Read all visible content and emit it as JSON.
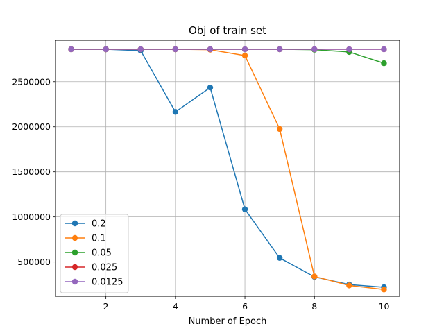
{
  "chart_data": {
    "type": "line",
    "title": "Obj of train set",
    "xlabel": "Number of Epoch",
    "ylabel": "",
    "x": [
      1,
      2,
      3,
      4,
      5,
      6,
      7,
      8,
      9,
      10
    ],
    "xticks": [
      2,
      4,
      6,
      8,
      10
    ],
    "yticks": [
      500000,
      1000000,
      1500000,
      2000000,
      2500000
    ],
    "xlim": [
      0.55,
      10.45
    ],
    "ylim": [
      120000,
      2960000
    ],
    "grid": true,
    "legend_position": "lower-left",
    "series": [
      {
        "name": "0.2",
        "color": "#1f77b4",
        "values": [
          2860000,
          2860000,
          2845000,
          2165000,
          2435000,
          1085000,
          545000,
          335000,
          250000,
          220000
        ]
      },
      {
        "name": "0.1",
        "color": "#ff7f0e",
        "values": [
          2860000,
          2860000,
          2860000,
          2860000,
          2855000,
          2790000,
          1975000,
          340000,
          240000,
          195000
        ]
      },
      {
        "name": "0.05",
        "color": "#2ca02c",
        "values": [
          2860000,
          2860000,
          2860000,
          2860000,
          2860000,
          2860000,
          2860000,
          2855000,
          2830000,
          2705000
        ]
      },
      {
        "name": "0.025",
        "color": "#d62728",
        "values": [
          2860000,
          2860000,
          2860000,
          2860000,
          2860000,
          2860000,
          2860000,
          2860000,
          2860000,
          2860000
        ]
      },
      {
        "name": "0.0125",
        "color": "#9467bd",
        "values": [
          2860000,
          2860000,
          2860000,
          2860000,
          2860000,
          2860000,
          2860000,
          2860000,
          2860000,
          2860000
        ]
      }
    ]
  }
}
